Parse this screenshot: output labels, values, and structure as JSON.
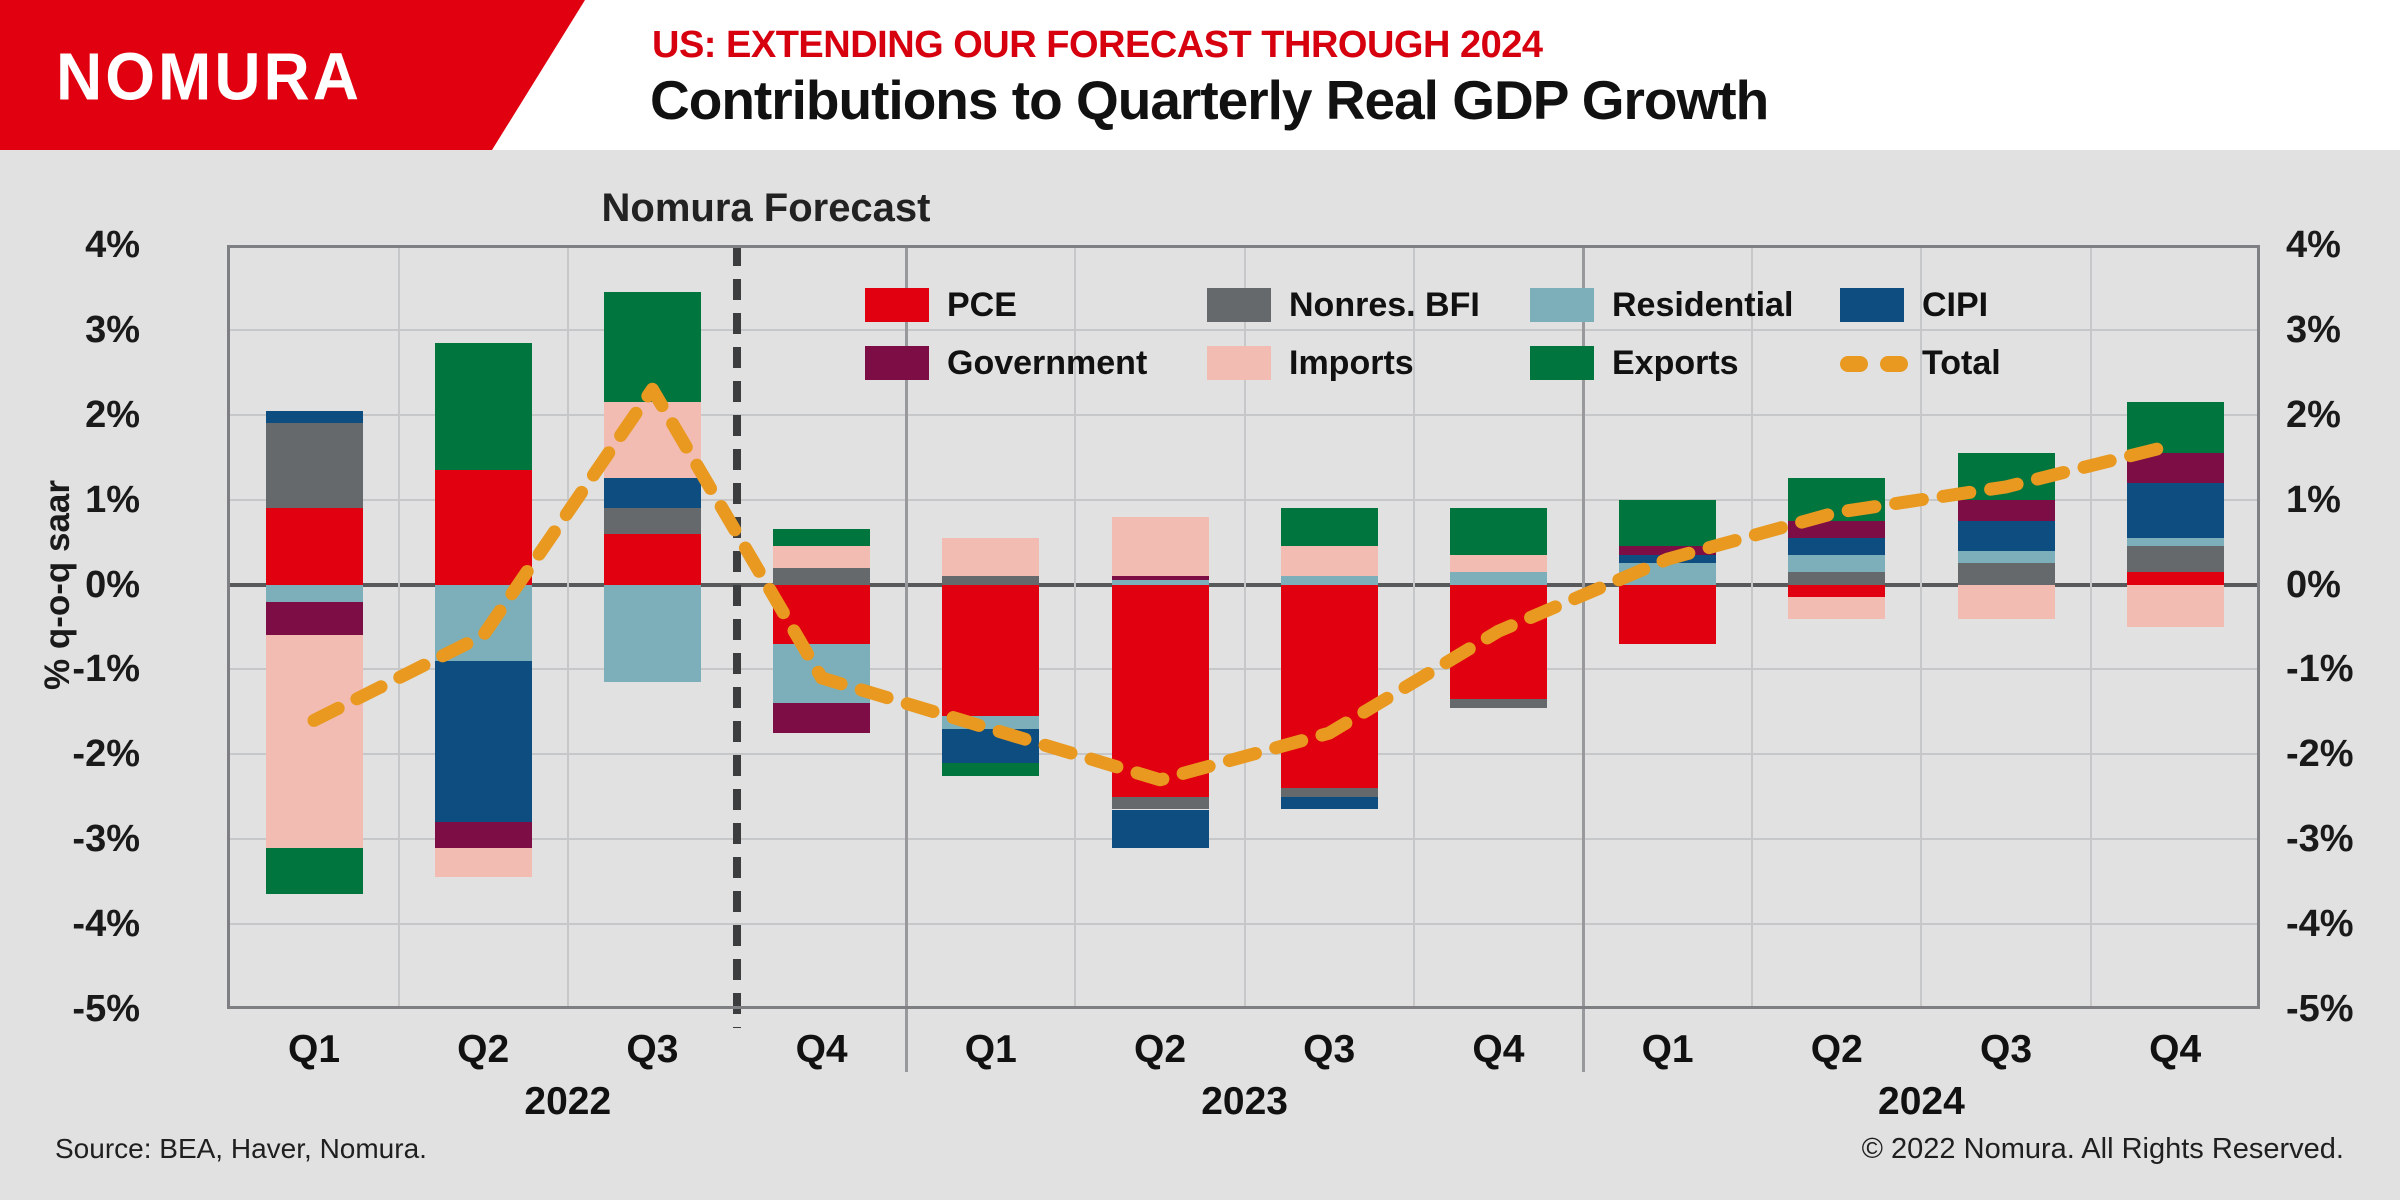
{
  "header": {
    "logo": "NOMURA",
    "subtitle": "US: EXTENDING OUR FORECAST THROUGH 2024",
    "title": "Contributions to Quarterly Real GDP Growth"
  },
  "footer": {
    "source": "Source: BEA, Haver, Nomura.",
    "copyright": "© 2022 Nomura. All Rights Reserved."
  },
  "colors": {
    "banner_red": "#e00010",
    "subtitle_red": "#d6000f",
    "background": "#e1e1e1",
    "gridline": "#c6c7c8",
    "zero_line": "#58595b",
    "frame": "#7d7f82",
    "year_divider": "#97999c",
    "forecast_divider": "#3c3d3f",
    "total_orange": "#e9991f"
  },
  "chart_data": {
    "type": "bar",
    "stacked": true,
    "title": "Contributions to Quarterly Real GDP Growth",
    "ylabel": "% q-o-q saar",
    "ylim": [
      -5,
      4
    ],
    "grid": true,
    "legend_position": "top-inside",
    "y_ticks": [
      "4%",
      "3%",
      "2%",
      "1%",
      "0%",
      "-1%",
      "-2%",
      "-3%",
      "-4%",
      "-5%"
    ],
    "y_tick_values": [
      4,
      3,
      2,
      1,
      0,
      -1,
      -2,
      -3,
      -4,
      -5
    ],
    "categories": [
      "Q1",
      "Q2",
      "Q3",
      "Q4",
      "Q1",
      "Q2",
      "Q3",
      "Q4",
      "Q1",
      "Q2",
      "Q3",
      "Q4"
    ],
    "year_groups": [
      {
        "label": "2022",
        "quarters": [
          "Q1",
          "Q2",
          "Q3",
          "Q4"
        ]
      },
      {
        "label": "2023",
        "quarters": [
          "Q1",
          "Q2",
          "Q3",
          "Q4"
        ]
      },
      {
        "label": "2024",
        "quarters": [
          "Q1",
          "Q2",
          "Q3",
          "Q4"
        ]
      }
    ],
    "forecast_label": "Nomura Forecast",
    "forecast_starts_after_category_index": 2,
    "series": [
      {
        "name": "PCE",
        "color": "#e0000f",
        "values": [
          0.9,
          1.35,
          0.6,
          -0.7,
          -1.55,
          -2.5,
          -2.4,
          -1.35,
          -0.7,
          -0.15,
          0.0,
          0.15
        ]
      },
      {
        "name": "Nonres. BFI",
        "color": "#66696c",
        "values": [
          1.0,
          0.0,
          0.3,
          0.2,
          0.1,
          -0.15,
          -0.1,
          -0.1,
          0.0,
          0.15,
          0.25,
          0.3
        ]
      },
      {
        "name": "Residential",
        "color": "#7cafb9",
        "values": [
          -0.2,
          -0.9,
          -1.15,
          -0.7,
          -0.15,
          0.05,
          0.1,
          0.15,
          0.25,
          0.2,
          0.15,
          0.1
        ]
      },
      {
        "name": "CIPI",
        "color": "#0e4d80",
        "values": [
          0.15,
          -1.9,
          0.35,
          0.0,
          -0.4,
          -0.45,
          -0.15,
          0.0,
          0.1,
          0.2,
          0.35,
          0.65
        ]
      },
      {
        "name": "Government",
        "color": "#7c0d45",
        "values": [
          -0.4,
          -0.3,
          0.0,
          -0.35,
          0.0,
          0.05,
          0.0,
          0.0,
          0.1,
          0.2,
          0.25,
          0.35
        ]
      },
      {
        "name": "Imports",
        "color": "#f2bcb3",
        "values": [
          -2.5,
          -0.35,
          0.9,
          0.25,
          0.45,
          0.7,
          0.35,
          0.2,
          0.0,
          -0.25,
          -0.4,
          -0.5
        ]
      },
      {
        "name": "Exports",
        "color": "#00753e",
        "values": [
          -0.55,
          1.5,
          1.3,
          0.2,
          -0.15,
          0.0,
          0.45,
          0.55,
          0.55,
          0.5,
          0.55,
          0.6
        ]
      }
    ],
    "total_series": {
      "name": "Total",
      "color": "#e9991f",
      "style": "dashed-line",
      "values": [
        -1.6,
        -0.6,
        2.3,
        -1.1,
        -1.7,
        -2.3,
        -1.75,
        -0.55,
        0.3,
        0.85,
        1.15,
        1.65
      ]
    }
  }
}
